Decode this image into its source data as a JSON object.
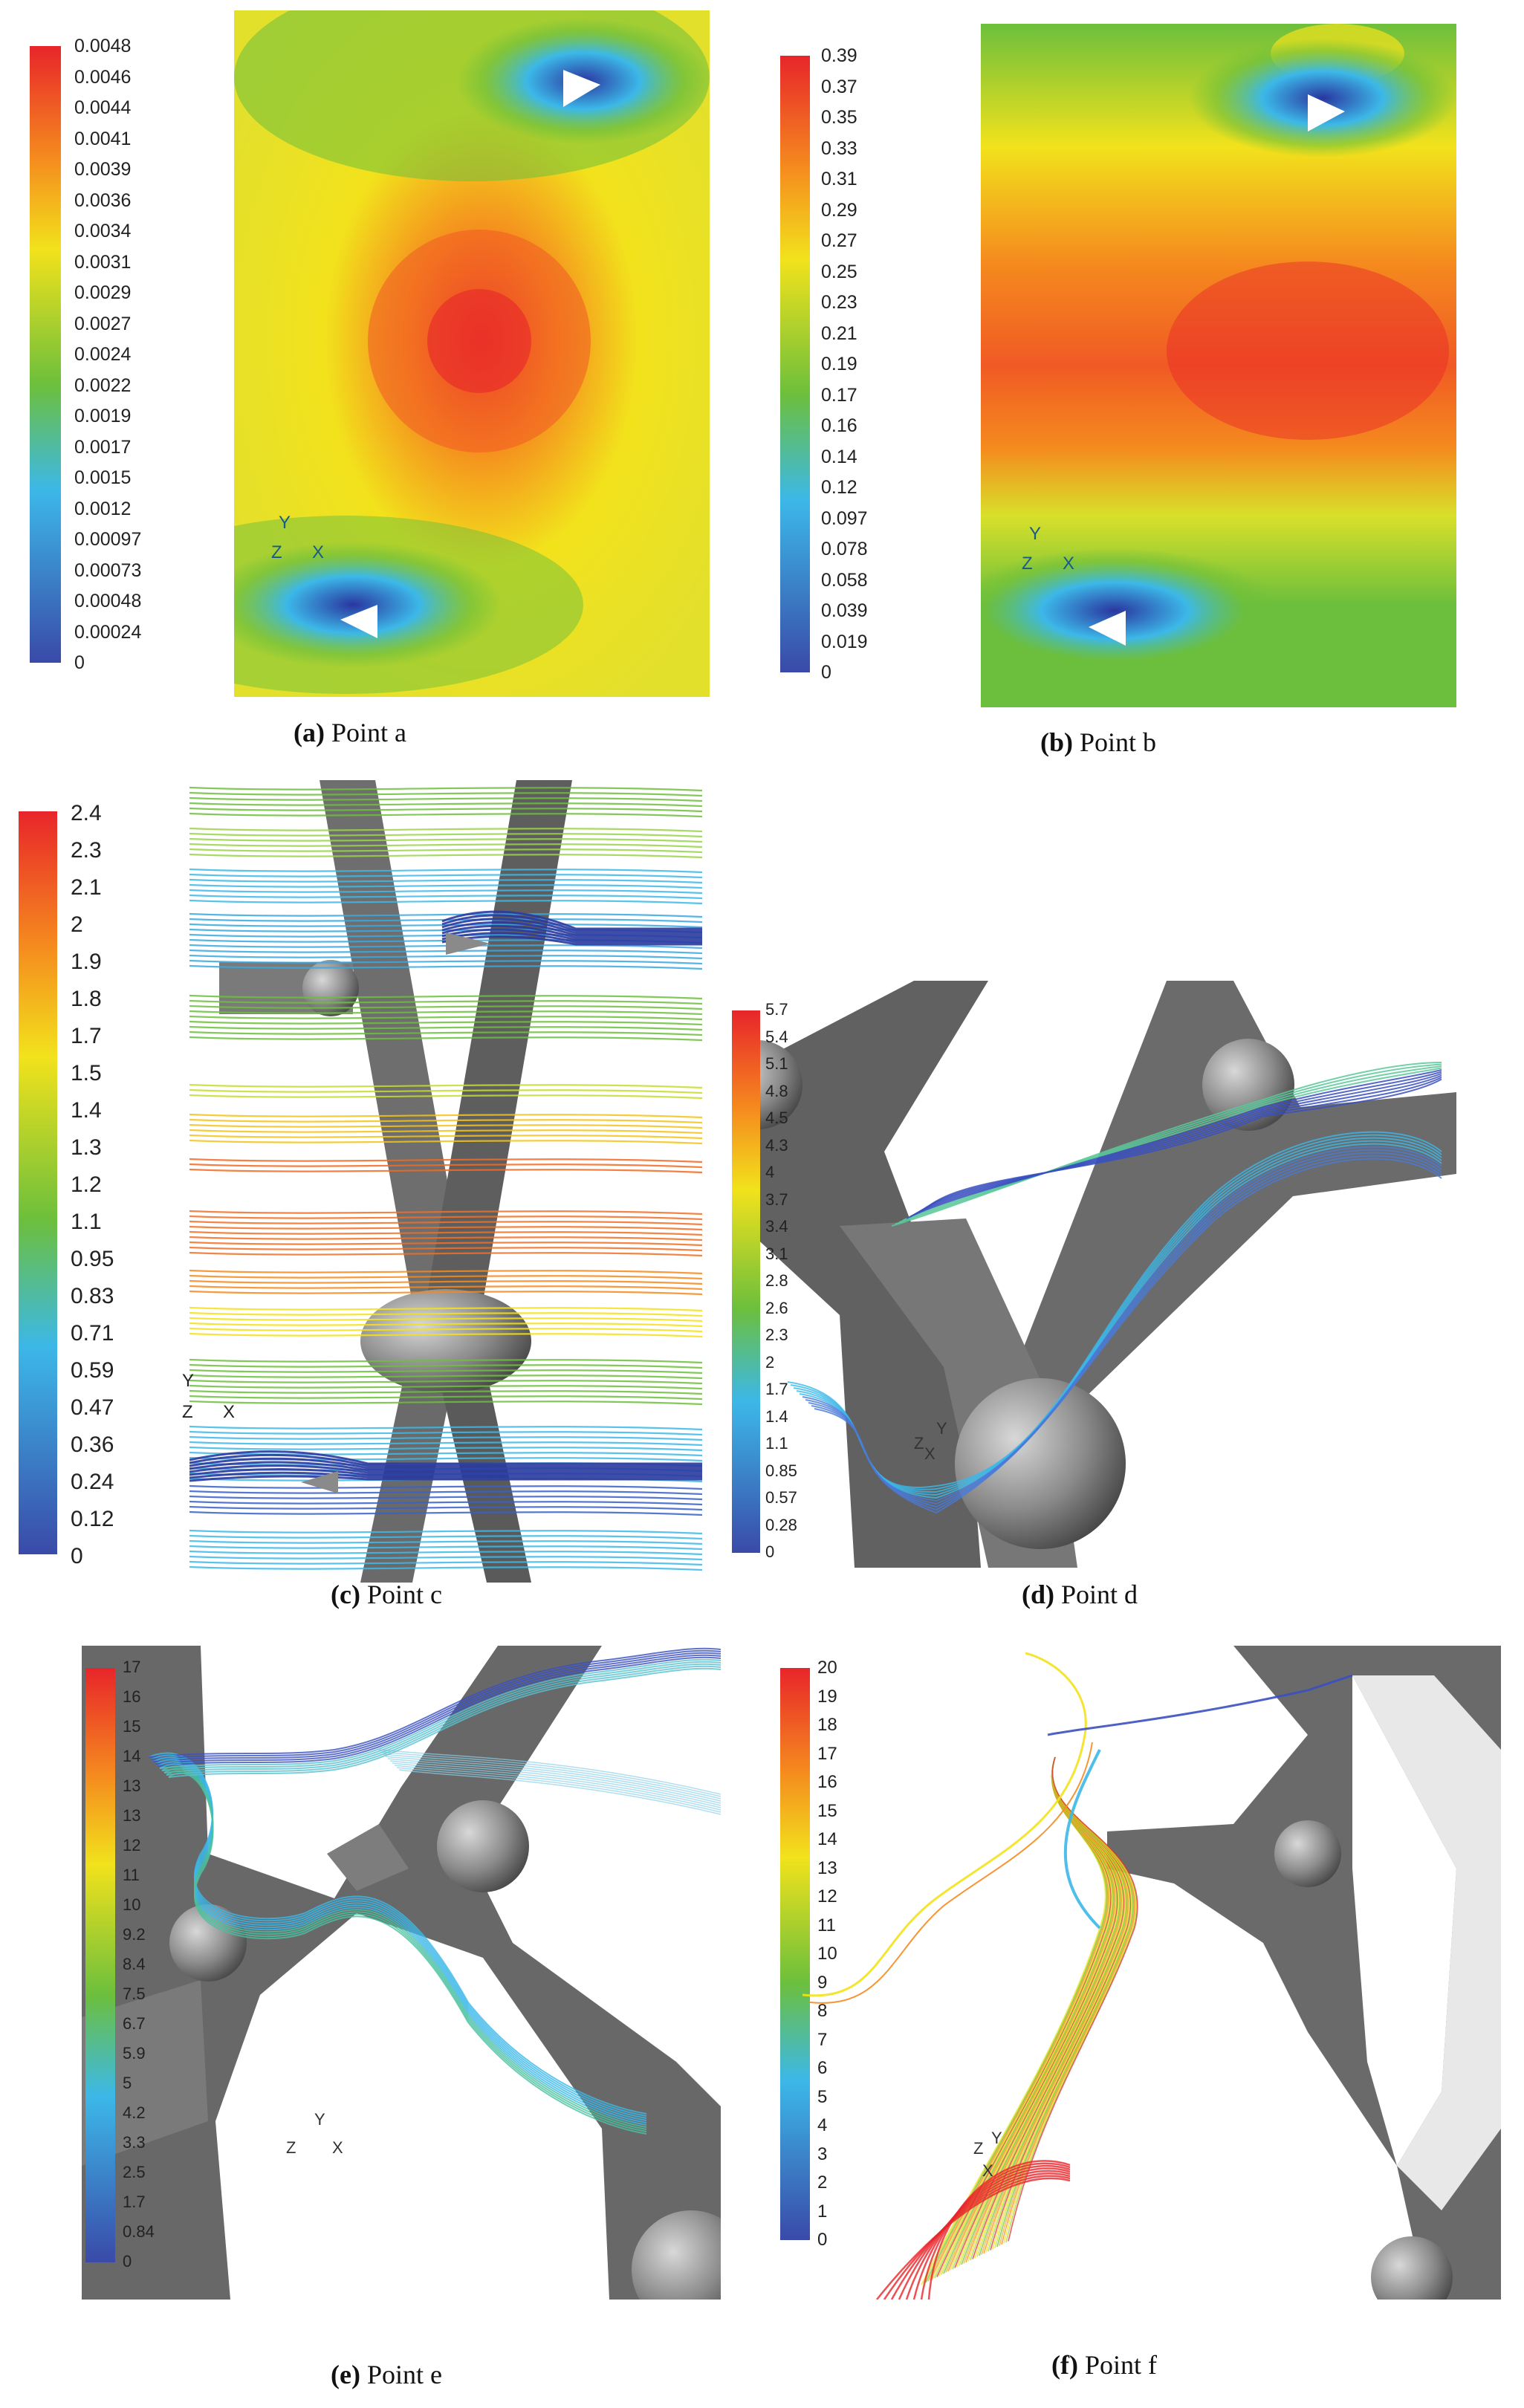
{
  "panels": [
    {
      "id": "a",
      "caption_letter": "(a)",
      "caption_text": "Point a",
      "colorbar_values": [
        "0.0048",
        "0.0046",
        "0.0044",
        "0.0041",
        "0.0039",
        "0.0036",
        "0.0034",
        "0.0031",
        "0.0029",
        "0.0027",
        "0.0024",
        "0.0022",
        "0.0019",
        "0.0017",
        "0.0015",
        "0.0012",
        "0.00097",
        "0.00073",
        "0.00048",
        "0.00024",
        "0"
      ],
      "axis": {
        "y": "Y",
        "z": "Z",
        "x": "X"
      }
    },
    {
      "id": "b",
      "caption_letter": "(b)",
      "caption_text": "Point b",
      "colorbar_values": [
        "0.39",
        "0.37",
        "0.35",
        "0.33",
        "0.31",
        "0.29",
        "0.27",
        "0.25",
        "0.23",
        "0.21",
        "0.19",
        "0.17",
        "0.16",
        "0.14",
        "0.12",
        "0.097",
        "0.078",
        "0.058",
        "0.039",
        "0.019",
        "0"
      ],
      "axis": {
        "y": "Y",
        "z": "Z",
        "x": "X"
      }
    },
    {
      "id": "c",
      "caption_letter": "(c)",
      "caption_text": "Point c",
      "colorbar_values": [
        "2.4",
        "2.3",
        "2.1",
        "2",
        "1.9",
        "1.8",
        "1.7",
        "1.5",
        "1.4",
        "1.3",
        "1.2",
        "1.1",
        "0.95",
        "0.83",
        "0.71",
        "0.59",
        "0.47",
        "0.36",
        "0.24",
        "0.12",
        "0"
      ],
      "axis": {
        "y": "Y",
        "z": "Z",
        "x": "X"
      }
    },
    {
      "id": "d",
      "caption_letter": "(d)",
      "caption_text": "Point d",
      "colorbar_values": [
        "5.7",
        "5.4",
        "5.1",
        "4.8",
        "4.5",
        "4.3",
        "4",
        "3.7",
        "3.4",
        "3.1",
        "2.8",
        "2.6",
        "2.3",
        "2",
        "1.7",
        "1.4",
        "1.1",
        "0.85",
        "0.57",
        "0.28",
        "0"
      ],
      "axis": {
        "y": "Y",
        "z": "Z",
        "x": "X"
      }
    },
    {
      "id": "e",
      "caption_letter": "(e)",
      "caption_text": "Point e",
      "colorbar_values": [
        "17",
        "16",
        "15",
        "14",
        "13",
        "13",
        "12",
        "11",
        "10",
        "9.2",
        "8.4",
        "7.5",
        "6.7",
        "5.9",
        "5",
        "4.2",
        "3.3",
        "2.5",
        "1.7",
        "0.84",
        "0"
      ],
      "axis": {
        "y": "Y",
        "z": "Z",
        "x": "X"
      }
    },
    {
      "id": "f",
      "caption_letter": "(f)",
      "caption_text": "Point f",
      "colorbar_values": [
        "20",
        "19",
        "18",
        "17",
        "16",
        "15",
        "14",
        "13",
        "12",
        "11",
        "10",
        "9",
        "8",
        "7",
        "6",
        "5",
        "4",
        "3",
        "2",
        "1",
        "0"
      ],
      "axis": {
        "y": "Y",
        "z": "Z",
        "x": "X"
      }
    }
  ],
  "colors": {
    "low": "#3a4aa8",
    "cyan": "#3cb8e8",
    "green": "#6cbf3c",
    "yellow": "#f2e21c",
    "orange": "#f58a1e",
    "high": "#e8252a",
    "strut": "#6e6e6e"
  }
}
